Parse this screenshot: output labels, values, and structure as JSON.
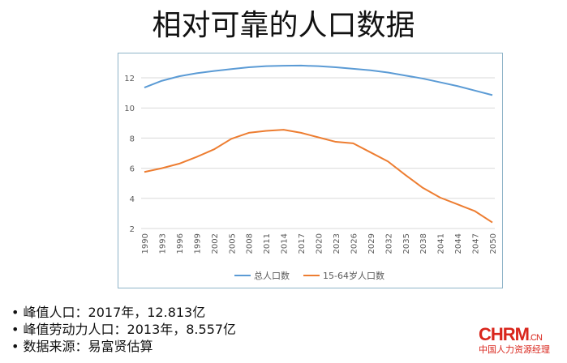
{
  "title": "相对可靠的人口数据",
  "bullets": [
    "峰值人口：2017年，12.813亿",
    "峰值劳动力人口：2013年，8.557亿",
    "数据来源：易富贤估算"
  ],
  "logo": {
    "main": "CHRM",
    "suffix": ".CN",
    "sub": "中国人力资源经理"
  },
  "chart_data": {
    "type": "line",
    "x": [
      1990,
      1993,
      1996,
      1999,
      2002,
      2005,
      2008,
      2011,
      2014,
      2017,
      2020,
      2023,
      2026,
      2029,
      2032,
      2035,
      2038,
      2041,
      2044,
      2047,
      2050
    ],
    "series": [
      {
        "name": "总人口数",
        "color": "#5b9bd5",
        "values": [
          11.35,
          11.8,
          12.1,
          12.3,
          12.45,
          12.58,
          12.7,
          12.77,
          12.8,
          12.81,
          12.77,
          12.7,
          12.6,
          12.5,
          12.35,
          12.15,
          11.95,
          11.7,
          11.45,
          11.15,
          10.85
        ]
      },
      {
        "name": "15-64岁人口数",
        "color": "#ed7d31",
        "values": [
          5.75,
          6.0,
          6.3,
          6.75,
          7.25,
          7.95,
          8.35,
          8.48,
          8.55,
          8.35,
          8.05,
          7.75,
          7.65,
          7.05,
          6.45,
          5.55,
          4.7,
          4.05,
          3.6,
          3.15,
          2.4
        ]
      }
    ],
    "yticks": [
      2,
      4,
      6,
      8,
      10,
      12
    ],
    "ylim": [
      2,
      13
    ],
    "legend": "bottom",
    "grid": true
  }
}
